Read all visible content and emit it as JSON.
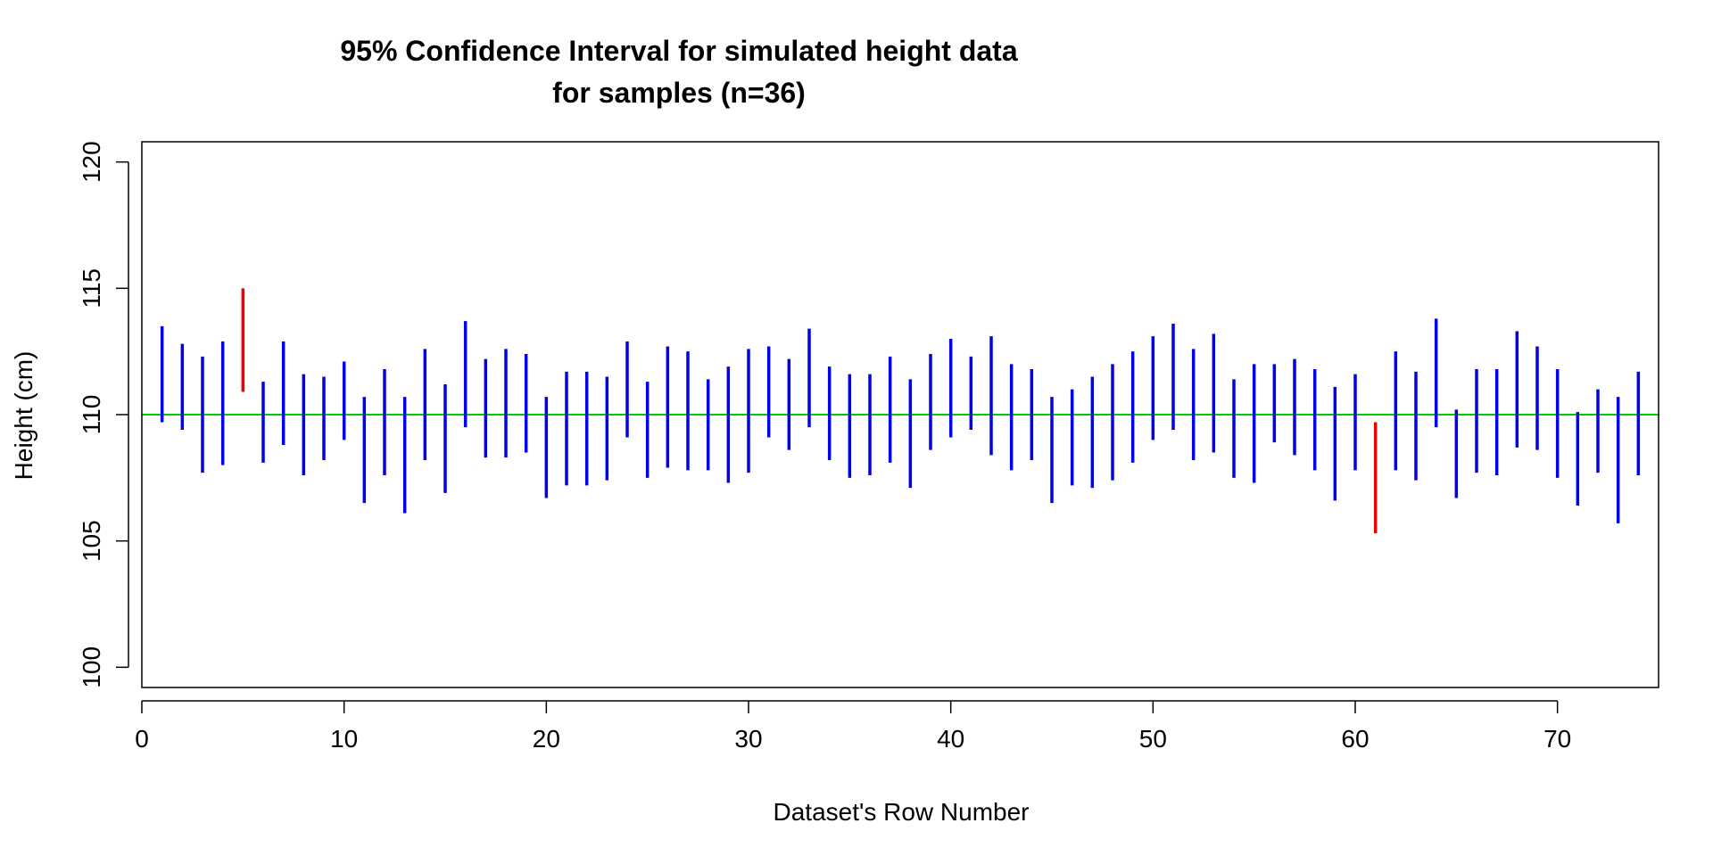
{
  "chart_data": {
    "type": "interval",
    "title": "95% Confidence Interval for simulated height data",
    "subtitle": "for samples (n=36)",
    "xlabel": "Dataset's Row Number",
    "ylabel": "Height (cm)",
    "xlim": [
      0,
      75
    ],
    "ylim": [
      99.2,
      120.8
    ],
    "xticks": [
      0,
      10,
      20,
      30,
      40,
      50,
      60,
      70
    ],
    "yticks": [
      100,
      105,
      110,
      115,
      120
    ],
    "reference_line": {
      "value": 110,
      "color": "#00cc00"
    },
    "colors": {
      "covers": "#0000ee",
      "misses": "#ee0000"
    },
    "x": [
      1,
      2,
      3,
      4,
      5,
      6,
      7,
      8,
      9,
      10,
      11,
      12,
      13,
      14,
      15,
      16,
      17,
      18,
      19,
      20,
      21,
      22,
      23,
      24,
      25,
      26,
      27,
      28,
      29,
      30,
      31,
      32,
      33,
      34,
      35,
      36,
      37,
      38,
      39,
      40,
      41,
      42,
      43,
      44,
      45,
      46,
      47,
      48,
      49,
      50,
      51,
      52,
      53,
      54,
      55,
      56,
      57,
      58,
      59,
      60,
      61,
      62,
      63,
      64,
      65,
      66,
      67,
      68,
      69,
      70,
      71,
      72,
      73,
      74
    ],
    "lower": [
      109.7,
      109.4,
      107.7,
      108.0,
      110.9,
      108.1,
      108.8,
      107.6,
      108.2,
      109.0,
      106.5,
      107.6,
      106.1,
      108.2,
      106.9,
      109.5,
      108.3,
      108.3,
      108.5,
      106.7,
      107.2,
      107.2,
      107.4,
      109.1,
      107.5,
      107.9,
      107.8,
      107.8,
      107.3,
      107.7,
      109.1,
      108.6,
      109.5,
      108.2,
      107.5,
      107.6,
      108.1,
      107.1,
      108.6,
      109.1,
      109.4,
      108.4,
      107.8,
      108.2,
      106.5,
      107.2,
      107.1,
      107.4,
      108.1,
      109.0,
      109.4,
      108.2,
      108.5,
      107.5,
      107.3,
      108.9,
      108.4,
      107.8,
      106.6,
      107.8,
      105.3,
      107.8,
      107.4,
      109.5,
      106.7,
      107.7,
      107.6,
      108.7,
      108.6,
      107.5,
      106.4,
      107.7,
      105.7,
      107.6
    ],
    "upper": [
      113.5,
      112.8,
      112.3,
      112.9,
      115.0,
      111.3,
      112.9,
      111.6,
      111.5,
      112.1,
      110.7,
      111.8,
      110.7,
      112.6,
      111.2,
      113.7,
      112.2,
      112.6,
      112.4,
      110.7,
      111.7,
      111.7,
      111.5,
      112.9,
      111.3,
      112.7,
      112.5,
      111.4,
      111.9,
      112.6,
      112.7,
      112.2,
      113.4,
      111.9,
      111.6,
      111.6,
      112.3,
      111.4,
      112.4,
      113.0,
      112.3,
      113.1,
      112.0,
      111.8,
      110.7,
      111.0,
      111.5,
      112.0,
      112.5,
      113.1,
      113.6,
      112.6,
      113.2,
      111.4,
      112.0,
      112.0,
      112.2,
      111.8,
      111.1,
      111.6,
      109.7,
      112.5,
      111.7,
      113.8,
      110.2,
      111.8,
      111.8,
      113.3,
      112.7,
      111.8,
      110.1,
      111.0,
      110.7,
      111.7
    ]
  }
}
